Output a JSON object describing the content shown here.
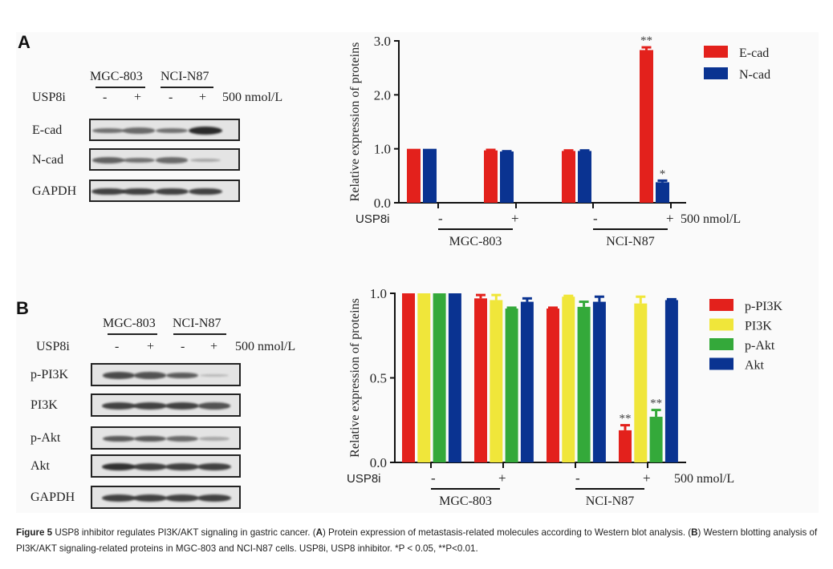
{
  "panel_a": {
    "label": "A",
    "blot": {
      "cell_lines": [
        "MGC-803",
        "NCI-N87"
      ],
      "treatment_label": "USP8i",
      "signs": [
        "-",
        "+",
        "-",
        "+"
      ],
      "dose": "500 nmol/L",
      "rows": [
        {
          "label": "E-cad",
          "intensities": [
            0.55,
            0.6,
            0.55,
            1.0
          ]
        },
        {
          "label": "N-cad",
          "intensities": [
            0.65,
            0.55,
            0.6,
            0.2
          ]
        },
        {
          "label": "GAPDH",
          "intensities": [
            0.85,
            0.85,
            0.85,
            0.85
          ]
        }
      ]
    }
  },
  "panel_b": {
    "label": "B",
    "blot": {
      "cell_lines": [
        "MGC-803",
        "NCI-N87"
      ],
      "treatment_label": "USP8i",
      "signs": [
        "-",
        "+",
        "-",
        "+"
      ],
      "dose": "500 nmol/L",
      "rows": [
        {
          "label": "p-PI3K",
          "intensities": [
            0.8,
            0.75,
            0.7,
            0.12
          ]
        },
        {
          "label": "PI3K",
          "intensities": [
            0.85,
            0.85,
            0.85,
            0.75
          ]
        },
        {
          "label": "p-Akt",
          "intensities": [
            0.7,
            0.7,
            0.6,
            0.2
          ]
        },
        {
          "label": "Akt",
          "intensities": [
            0.95,
            0.85,
            0.85,
            0.85
          ]
        },
        {
          "label": "GAPDH",
          "intensities": [
            0.85,
            0.85,
            0.85,
            0.85
          ]
        }
      ]
    }
  },
  "chart_data": [
    {
      "type": "bar",
      "panel": "A",
      "title": "",
      "xlabel": "",
      "ylabel": "Relative expression of proteins",
      "ylim": [
        0,
        3.0
      ],
      "yticks": [
        "0.0",
        "1.0",
        "2.0",
        "3.0"
      ],
      "ytick_values": [
        0,
        1,
        2,
        3
      ],
      "categories": [
        "MGC-803 -",
        "MGC-803 +",
        "NCI-N87 -",
        "NCI-N87 +"
      ],
      "treatment_label": "USP8i",
      "signs": [
        "-",
        "+",
        "-",
        "+"
      ],
      "groups": [
        "MGC-803",
        "NCI-N87"
      ],
      "dose": "500 nmol/L",
      "legend_position": "top-right",
      "series": [
        {
          "name": "E-cad",
          "color": "#e3211c",
          "values": [
            1.0,
            0.97,
            0.96,
            2.83
          ],
          "errors": [
            0,
            0.01,
            0.01,
            0.05
          ],
          "annotations": [
            "",
            "",
            "",
            "**"
          ]
        },
        {
          "name": "N-cad",
          "color": "#0a3391",
          "values": [
            1.0,
            0.95,
            0.96,
            0.38
          ],
          "errors": [
            0,
            0.005,
            0.01,
            0.03
          ],
          "annotations": [
            "",
            "",
            "",
            "*"
          ]
        }
      ],
      "grid": false
    },
    {
      "type": "bar",
      "panel": "B",
      "title": "",
      "xlabel": "",
      "ylabel": "Relative expression of proteins",
      "ylim": [
        0,
        1.0
      ],
      "yticks": [
        "0.0",
        "0.5",
        "1.0"
      ],
      "ytick_values": [
        0,
        0.5,
        1.0
      ],
      "categories": [
        "MGC-803 -",
        "MGC-803 +",
        "NCI-N87 -",
        "NCI-N87 +"
      ],
      "treatment_label": "USP8i",
      "signs": [
        "-",
        "+",
        "-",
        "+"
      ],
      "groups": [
        "MGC-803",
        "NCI-N87"
      ],
      "dose": "500 nmol/L",
      "legend_position": "top-right",
      "series": [
        {
          "name": "p-PI3K",
          "color": "#e3211c",
          "values": [
            1.0,
            0.97,
            0.91,
            0.19
          ],
          "errors": [
            0,
            0.02,
            0.005,
            0.03
          ],
          "annotations": [
            "",
            "",
            "",
            "**"
          ]
        },
        {
          "name": "PI3K",
          "color": "#f0e63a",
          "values": [
            1.0,
            0.96,
            0.98,
            0.94
          ],
          "errors": [
            0,
            0.03,
            0.005,
            0.04
          ],
          "annotations": [
            "",
            "",
            "",
            ""
          ]
        },
        {
          "name": "p-Akt",
          "color": "#34a93a",
          "values": [
            1.0,
            0.91,
            0.92,
            0.27
          ],
          "errors": [
            0,
            0.005,
            0.03,
            0.04
          ],
          "annotations": [
            "",
            "",
            "",
            "**"
          ]
        },
        {
          "name": "Akt",
          "color": "#0a3391",
          "values": [
            1.0,
            0.95,
            0.95,
            0.96
          ],
          "errors": [
            0,
            0.02,
            0.03,
            0.005
          ],
          "annotations": [
            "",
            "",
            "",
            ""
          ]
        }
      ],
      "grid": false
    }
  ],
  "caption": {
    "figure_label": "Figure 5",
    "text_1": " USP8 inhibitor regulates PI3K/AKT signaling in gastric cancer. (",
    "a": "A",
    "text_2": ") Protein expression of metastasis-related molecules according to Western blot analysis. (",
    "b": "B",
    "text_3": ") Western blotting analysis of PI3K/AKT signaling-related proteins in MGC-803 and NCI-N87 cells. USP8i, USP8 inhibitor. *P < 0.05, **P<0.01."
  }
}
